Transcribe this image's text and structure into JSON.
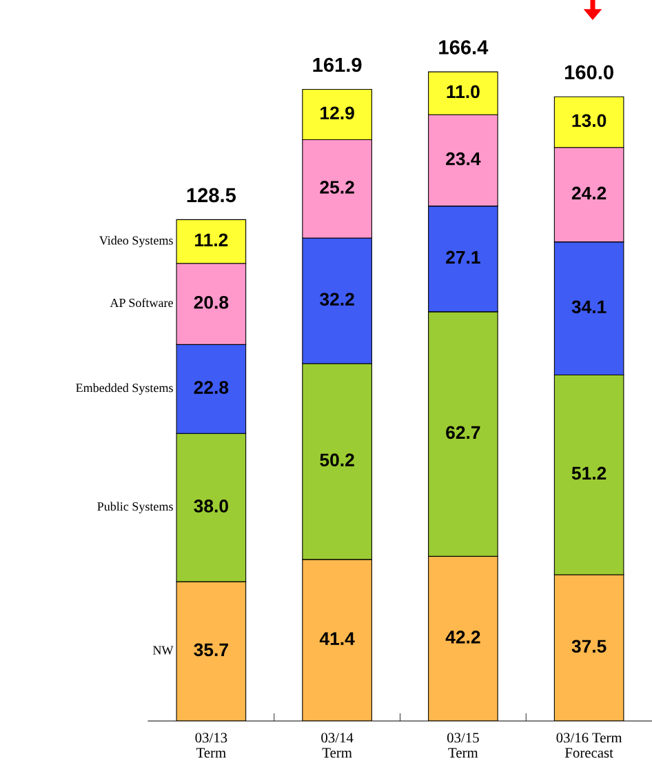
{
  "chart_data": {
    "type": "bar",
    "stacked": true,
    "legend": false,
    "grid": false,
    "categories": [
      "03/13\nTerm",
      "03/14\nTerm",
      "03/15\nTerm",
      "03/16 Term\nForecast"
    ],
    "series": [
      {
        "name": "NW",
        "color": "#ffb84d",
        "values": [
          35.7,
          41.4,
          42.2,
          37.5
        ],
        "value_labels": [
          "35.7",
          "41.4",
          "42.2",
          "37.5"
        ]
      },
      {
        "name": "Public Systems",
        "color": "#9ccc33",
        "values": [
          38.0,
          50.2,
          62.7,
          51.2
        ],
        "value_labels": [
          "38.0",
          "50.2",
          "62.7",
          "51.2"
        ]
      },
      {
        "name": "Embedded Systems",
        "color": "#3f5cf5",
        "values": [
          22.8,
          32.2,
          27.1,
          34.1
        ],
        "value_labels": [
          "22.8",
          "32.2",
          "27.1",
          "34.1"
        ]
      },
      {
        "name": "AP Software",
        "color": "#ff99cc",
        "values": [
          20.8,
          25.2,
          23.4,
          24.2
        ],
        "value_labels": [
          "20.8",
          "25.2",
          "23.4",
          "24.2"
        ]
      },
      {
        "name": "Video Systems",
        "color": "#ffff33",
        "values": [
          11.2,
          12.9,
          11.0,
          13.0
        ],
        "value_labels": [
          "11.2",
          "12.9",
          "11.0",
          "13.0"
        ]
      }
    ],
    "totals": [
      "128.5",
      "161.9",
      "166.4",
      "160.0"
    ]
  }
}
